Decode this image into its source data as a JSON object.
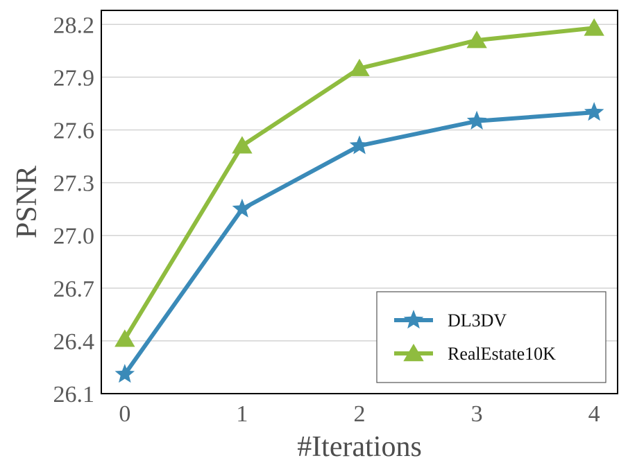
{
  "chart_data": {
    "type": "line",
    "xlabel": "#Iterations",
    "ylabel": "PSNR",
    "x": [
      0,
      1,
      2,
      3,
      4
    ],
    "xticks": [
      "0",
      "1",
      "2",
      "3",
      "4"
    ],
    "yticks": [
      "26.1",
      "26.4",
      "26.7",
      "27.0",
      "27.3",
      "27.6",
      "27.9",
      "28.2"
    ],
    "ylim": [
      26.1,
      28.28
    ],
    "xlim": [
      -0.2,
      4.2
    ],
    "grid": "horizontal",
    "legend_position": "bottom-right",
    "series": [
      {
        "name": "DL3DV",
        "marker": "star",
        "color": "#3a8ab8",
        "values": [
          26.21,
          27.15,
          27.51,
          27.65,
          27.7
        ]
      },
      {
        "name": "RealEstate10K",
        "marker": "triangle",
        "color": "#8fbc3f",
        "values": [
          26.41,
          27.51,
          27.95,
          28.11,
          28.18
        ]
      }
    ]
  }
}
